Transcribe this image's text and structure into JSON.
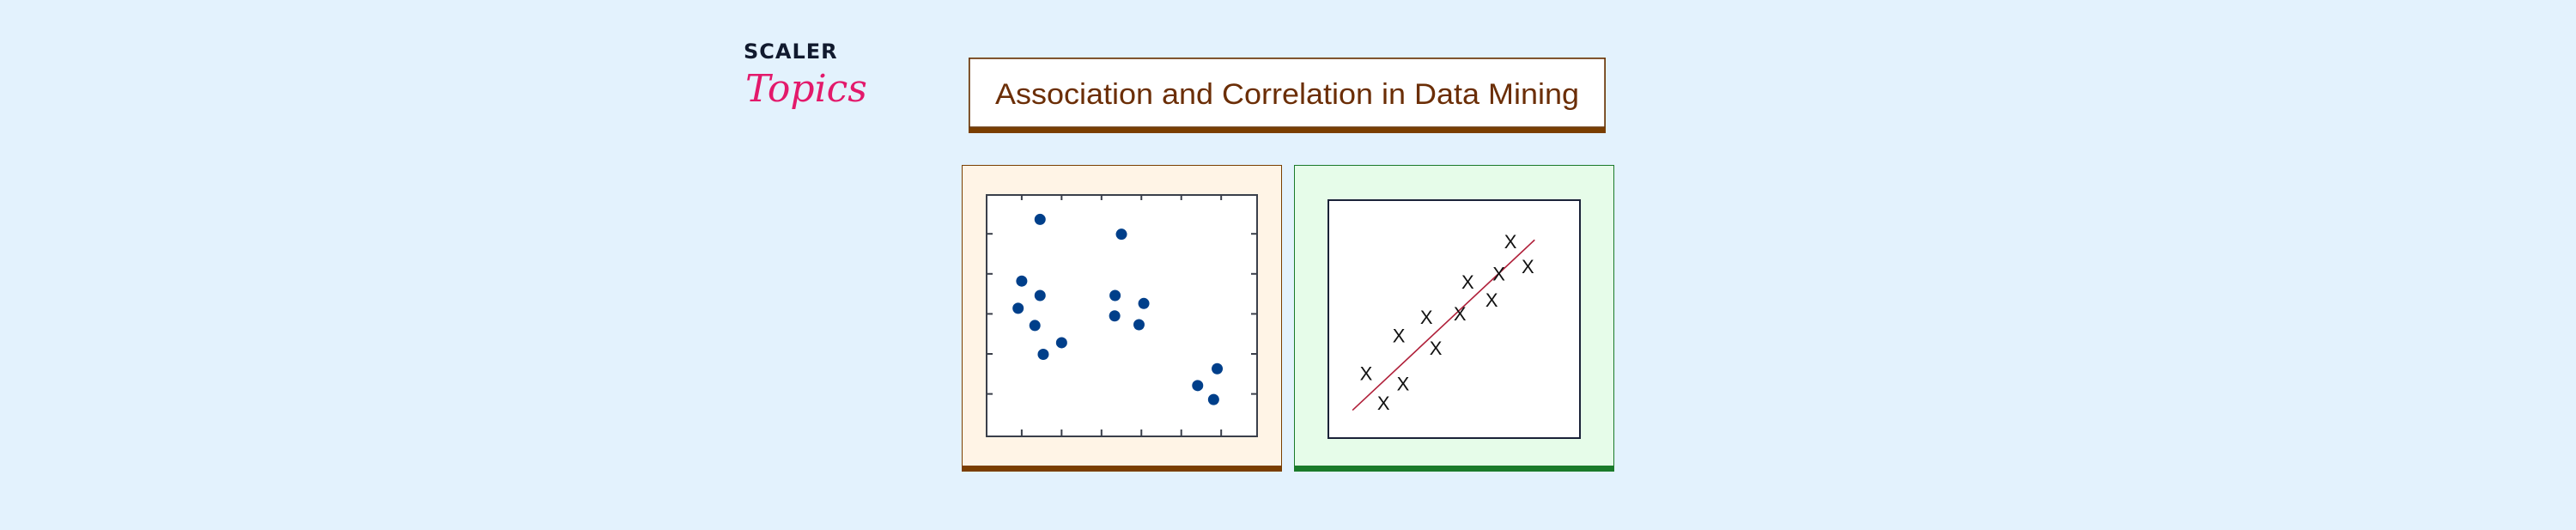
{
  "logo": {
    "line1": "SCALER",
    "line2": "Topics"
  },
  "title": "Association and Correlation in Data Mining",
  "colors": {
    "background": "#e3f2fd",
    "title_text": "#6b2e06",
    "left_panel_bg": "#fff4e6",
    "left_panel_border": "#7a3e00",
    "right_panel_bg": "#e6fce9",
    "right_panel_border": "#1a7a2a",
    "dot": "#003f8a",
    "trend_line": "#b0203a",
    "x_mark": "#111111"
  },
  "chart_data": [
    {
      "type": "scatter",
      "title": "",
      "xlabel": "",
      "ylabel": "",
      "xlim": [
        0.12,
        6.9
      ],
      "ylim": [
        -0.06,
        5.97
      ],
      "xticks": [
        1,
        2,
        3,
        4,
        5,
        6
      ],
      "yticks": [
        1,
        2,
        3,
        4,
        5
      ],
      "marker": "dot",
      "points": [
        [
          1.46,
          5.36
        ],
        [
          3.5,
          4.99
        ],
        [
          1.0,
          3.82
        ],
        [
          1.46,
          3.46
        ],
        [
          0.91,
          3.14
        ],
        [
          1.33,
          2.71
        ],
        [
          1.54,
          1.99
        ],
        [
          2.0,
          2.28
        ],
        [
          3.34,
          3.46
        ],
        [
          3.33,
          2.95
        ],
        [
          4.06,
          3.26
        ],
        [
          3.94,
          2.73
        ],
        [
          5.41,
          1.21
        ],
        [
          5.9,
          1.63
        ],
        [
          5.81,
          0.86
        ]
      ]
    },
    {
      "type": "scatter",
      "title": "",
      "xlabel": "",
      "ylabel": "",
      "xlim": [
        0,
        100
      ],
      "ylim": [
        0,
        100
      ],
      "marker": "X",
      "points": [
        [
          72.4,
          82.3
        ],
        [
          79.3,
          71.8
        ],
        [
          67.8,
          68.8
        ],
        [
          55.4,
          65.3
        ],
        [
          64.9,
          57.7
        ],
        [
          52.3,
          52.0
        ],
        [
          39.0,
          50.5
        ],
        [
          28.0,
          42.7
        ],
        [
          42.7,
          37.5
        ],
        [
          15.0,
          26.9
        ],
        [
          29.7,
          22.6
        ],
        [
          21.9,
          14.4
        ]
      ],
      "trend_line": [
        [
          9.6,
          11.7
        ],
        [
          82.0,
          83.3
        ]
      ]
    }
  ]
}
